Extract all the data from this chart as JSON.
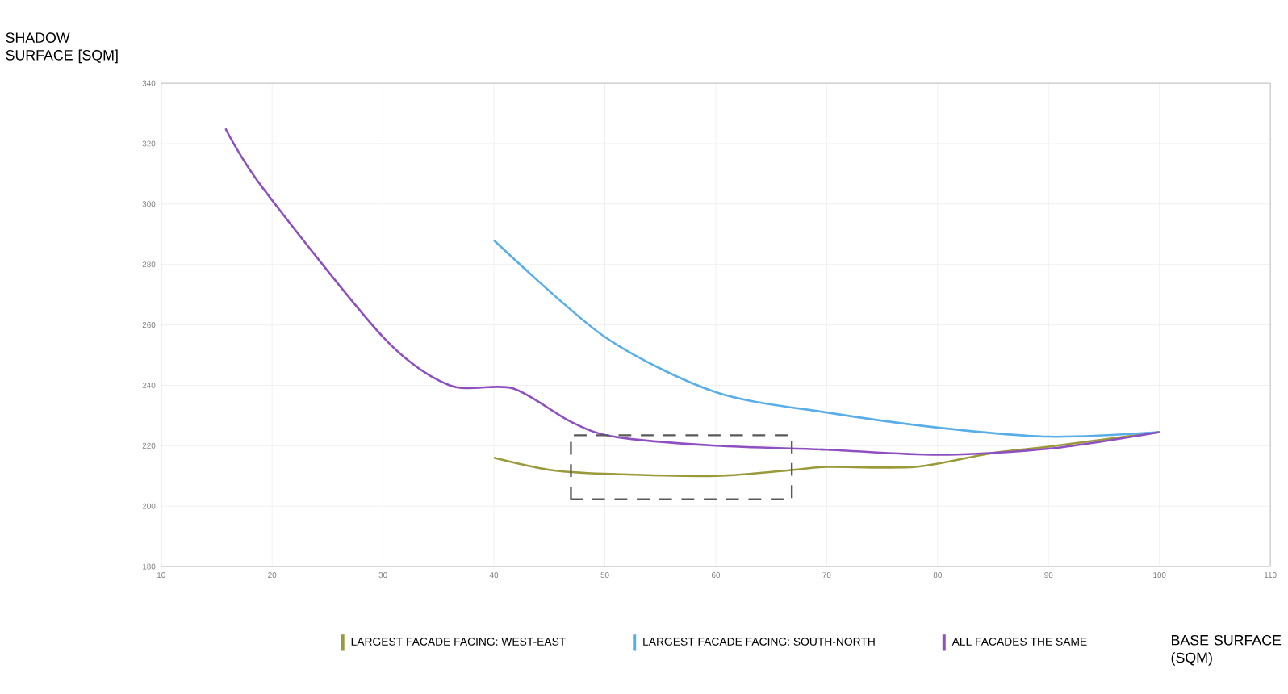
{
  "chart_data": {
    "type": "line",
    "xlabel": "BASE SURFACE (SQM)",
    "ylabel": "SHADOW SURFACE [SQM]",
    "xlim": [
      10,
      110
    ],
    "xticks": [
      10,
      20,
      30,
      40,
      50,
      60,
      70,
      80,
      90,
      100,
      110
    ],
    "ylim": [
      180,
      340
    ],
    "yticks": [
      180,
      200,
      220,
      240,
      260,
      280,
      300,
      320,
      340
    ],
    "grid": true,
    "legend": "bottom",
    "marker": "none",
    "line_style": "solid",
    "series": [
      {
        "name": "LARGEST FACADE FACING: WEST-EAST",
        "color": "#9a9a3a",
        "x": [
          40,
          45,
          50,
          60,
          67,
          70,
          78,
          85,
          90,
          100
        ],
        "values": [
          216,
          212,
          210.7,
          210,
          212,
          213,
          213,
          217.6,
          219.7,
          224.5
        ]
      },
      {
        "name": "LARGEST FACADE FACING: SOUTH-NORTH",
        "color": "#5aaee8",
        "x": [
          40,
          50,
          60,
          70,
          80,
          90,
          100
        ],
        "values": [
          288,
          256,
          237.7,
          231,
          226,
          223,
          224.5
        ]
      },
      {
        "name": "ALL FACADES THE SAME",
        "color": "#8e4fc0",
        "x": [
          15.8,
          19.1,
          30,
          36,
          41.7,
          46.9,
          50.8,
          60,
          70,
          80,
          90,
          100
        ],
        "values": [
          325,
          305.6,
          256,
          240,
          239,
          228,
          223,
          220,
          218.7,
          217,
          219,
          224.5
        ]
      }
    ]
  }
}
